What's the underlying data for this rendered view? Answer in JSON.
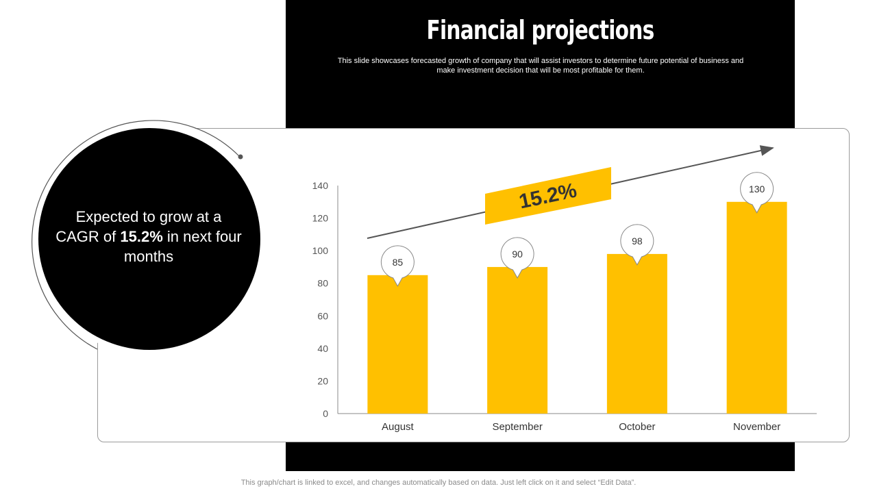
{
  "header": {
    "title": "Financial projections",
    "subtitle_line1": "This slide showcases forecasted growth of company that will assist investors to determine future potential of business and",
    "subtitle_line2": "make investment decision that will be most profitable for them."
  },
  "callout": {
    "text_before": "Expected to grow at a CAGR of",
    "highlight": "15.2%",
    "text_after": "in next four months"
  },
  "growth_banner": {
    "label": "15.2%"
  },
  "footer": {
    "note": "This graph/chart is linked to excel,  and changes automatically based on data. Just left click on it and select “Edit Data”."
  },
  "colors": {
    "bar": "#FFC000",
    "dark": "#000000",
    "axis": "#555555"
  },
  "chart_data": {
    "type": "bar",
    "title": "",
    "categories": [
      "August",
      "September",
      "October",
      "November"
    ],
    "values": [
      85,
      90,
      98,
      130
    ],
    "data_labels": [
      "85",
      "90",
      "98",
      "130"
    ],
    "ylim": [
      0,
      140
    ],
    "yticks": [
      0,
      20,
      40,
      60,
      80,
      100,
      120,
      140
    ],
    "xlabel": "",
    "ylabel": "",
    "grid": false
  }
}
